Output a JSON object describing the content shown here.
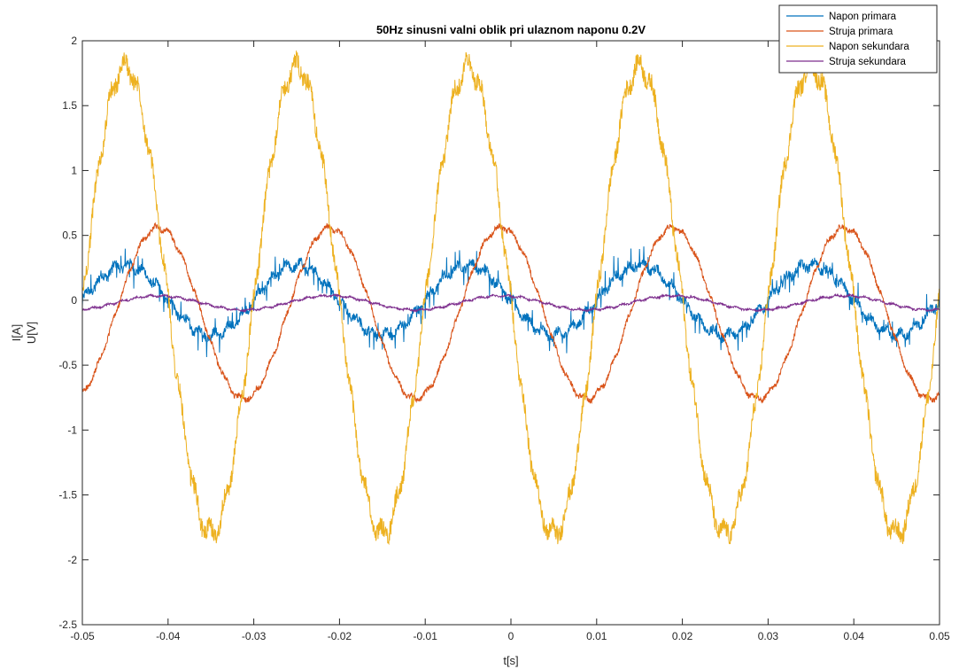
{
  "chart_data": {
    "type": "line",
    "title": "50Hz sinusni valni oblik pri ulaznom naponu 0.2V",
    "xlabel": "t[s]",
    "ylabel_lines": [
      "I[A]",
      "U[V]"
    ],
    "xlim": [
      -0.05,
      0.05
    ],
    "ylim": [
      -2.5,
      2
    ],
    "xticks": [
      -0.05,
      -0.04,
      -0.03,
      -0.02,
      -0.01,
      0,
      0.01,
      0.02,
      0.03,
      0.04,
      0.05
    ],
    "xtick_labels": [
      "-0.05",
      "-0.04",
      "-0.03",
      "-0.02",
      "-0.01",
      "0",
      "0.01",
      "0.02",
      "0.03",
      "0.04",
      "0.05"
    ],
    "yticks": [
      -2.5,
      -2,
      -1.5,
      -1,
      -0.5,
      0,
      0.5,
      1,
      1.5,
      2
    ],
    "ytick_labels": [
      "-2.5",
      "-2",
      "-1.5",
      "-1",
      "-0.5",
      "0",
      "0.5",
      "1",
      "1.5",
      "2"
    ],
    "grid": false,
    "legend_position": "top-right",
    "frequency_hz": 50,
    "series": [
      {
        "name": "Napon primara",
        "color": "#0072BD",
        "amplitude": 0.27,
        "phase_deg": 180,
        "offset": 0,
        "ripple": 0.05,
        "spikes": true
      },
      {
        "name": "Struja primara",
        "color": "#D95319",
        "amplitude": 0.66,
        "phase_deg": 110,
        "offset": -0.1,
        "ripple": 0.03,
        "spikes": false
      },
      {
        "name": "Napon sekundara",
        "color": "#EDB120",
        "amplitude": 1.8,
        "phase_deg": 180,
        "offset": 0,
        "ripple": 0.1,
        "spikes": false
      },
      {
        "name": "Struja sekundara",
        "color": "#7E2F8E",
        "amplitude": 0.055,
        "phase_deg": 110,
        "offset": -0.02,
        "ripple": 0.01,
        "spikes": false
      }
    ]
  }
}
